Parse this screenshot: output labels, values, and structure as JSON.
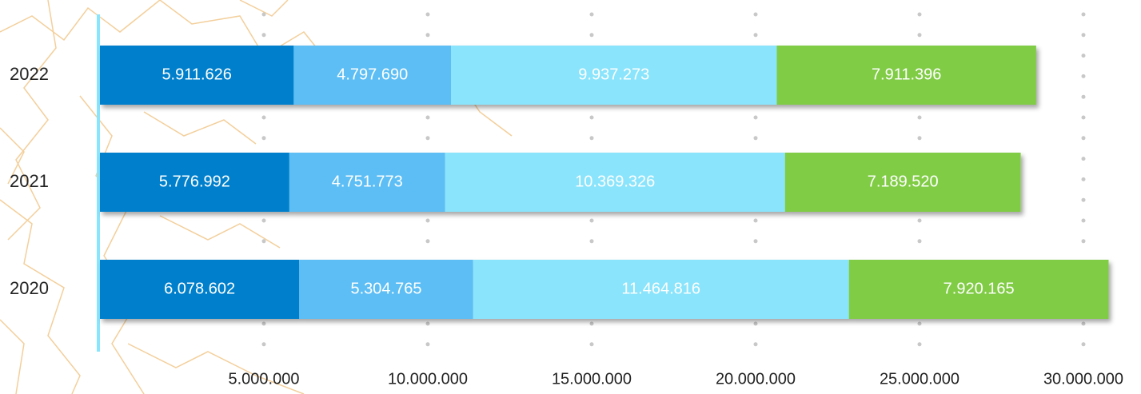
{
  "chart_data": {
    "type": "stacked-bar-horizontal",
    "categories": [
      "2022",
      "2021",
      "2020"
    ],
    "series": [
      {
        "color": "#0080cc",
        "values": [
          5911626,
          5776992,
          6078602
        ],
        "value_labels": [
          "5.911.626",
          "5.776.992",
          "6.078.602"
        ]
      },
      {
        "color": "#5bbef5",
        "values": [
          4797690,
          4751773,
          5304765
        ],
        "value_labels": [
          "4.797.690",
          "4.751.773",
          "5.304.765"
        ]
      },
      {
        "color": "#8ae4fc",
        "values": [
          9937273,
          10369326,
          11464816
        ],
        "value_labels": [
          "9.937.273",
          "10.369.326",
          "11.464.816"
        ]
      },
      {
        "color": "#80cc45",
        "values": [
          7911396,
          7189520,
          7920165
        ],
        "value_labels": [
          "7.911.396",
          "7.189.520",
          "7.920.165"
        ]
      }
    ],
    "xlim": [
      0,
      31500000
    ],
    "xticks": [
      {
        "value": 5000000,
        "label": "5.000.000"
      },
      {
        "value": 10000000,
        "label": "10.000.000"
      },
      {
        "value": 15000000,
        "label": "15.000.000"
      },
      {
        "value": 20000000,
        "label": "20.000.000"
      },
      {
        "value": 25000000,
        "label": "25.000.000"
      },
      {
        "value": 30000000,
        "label": "30.000.000"
      }
    ],
    "grid": true
  }
}
